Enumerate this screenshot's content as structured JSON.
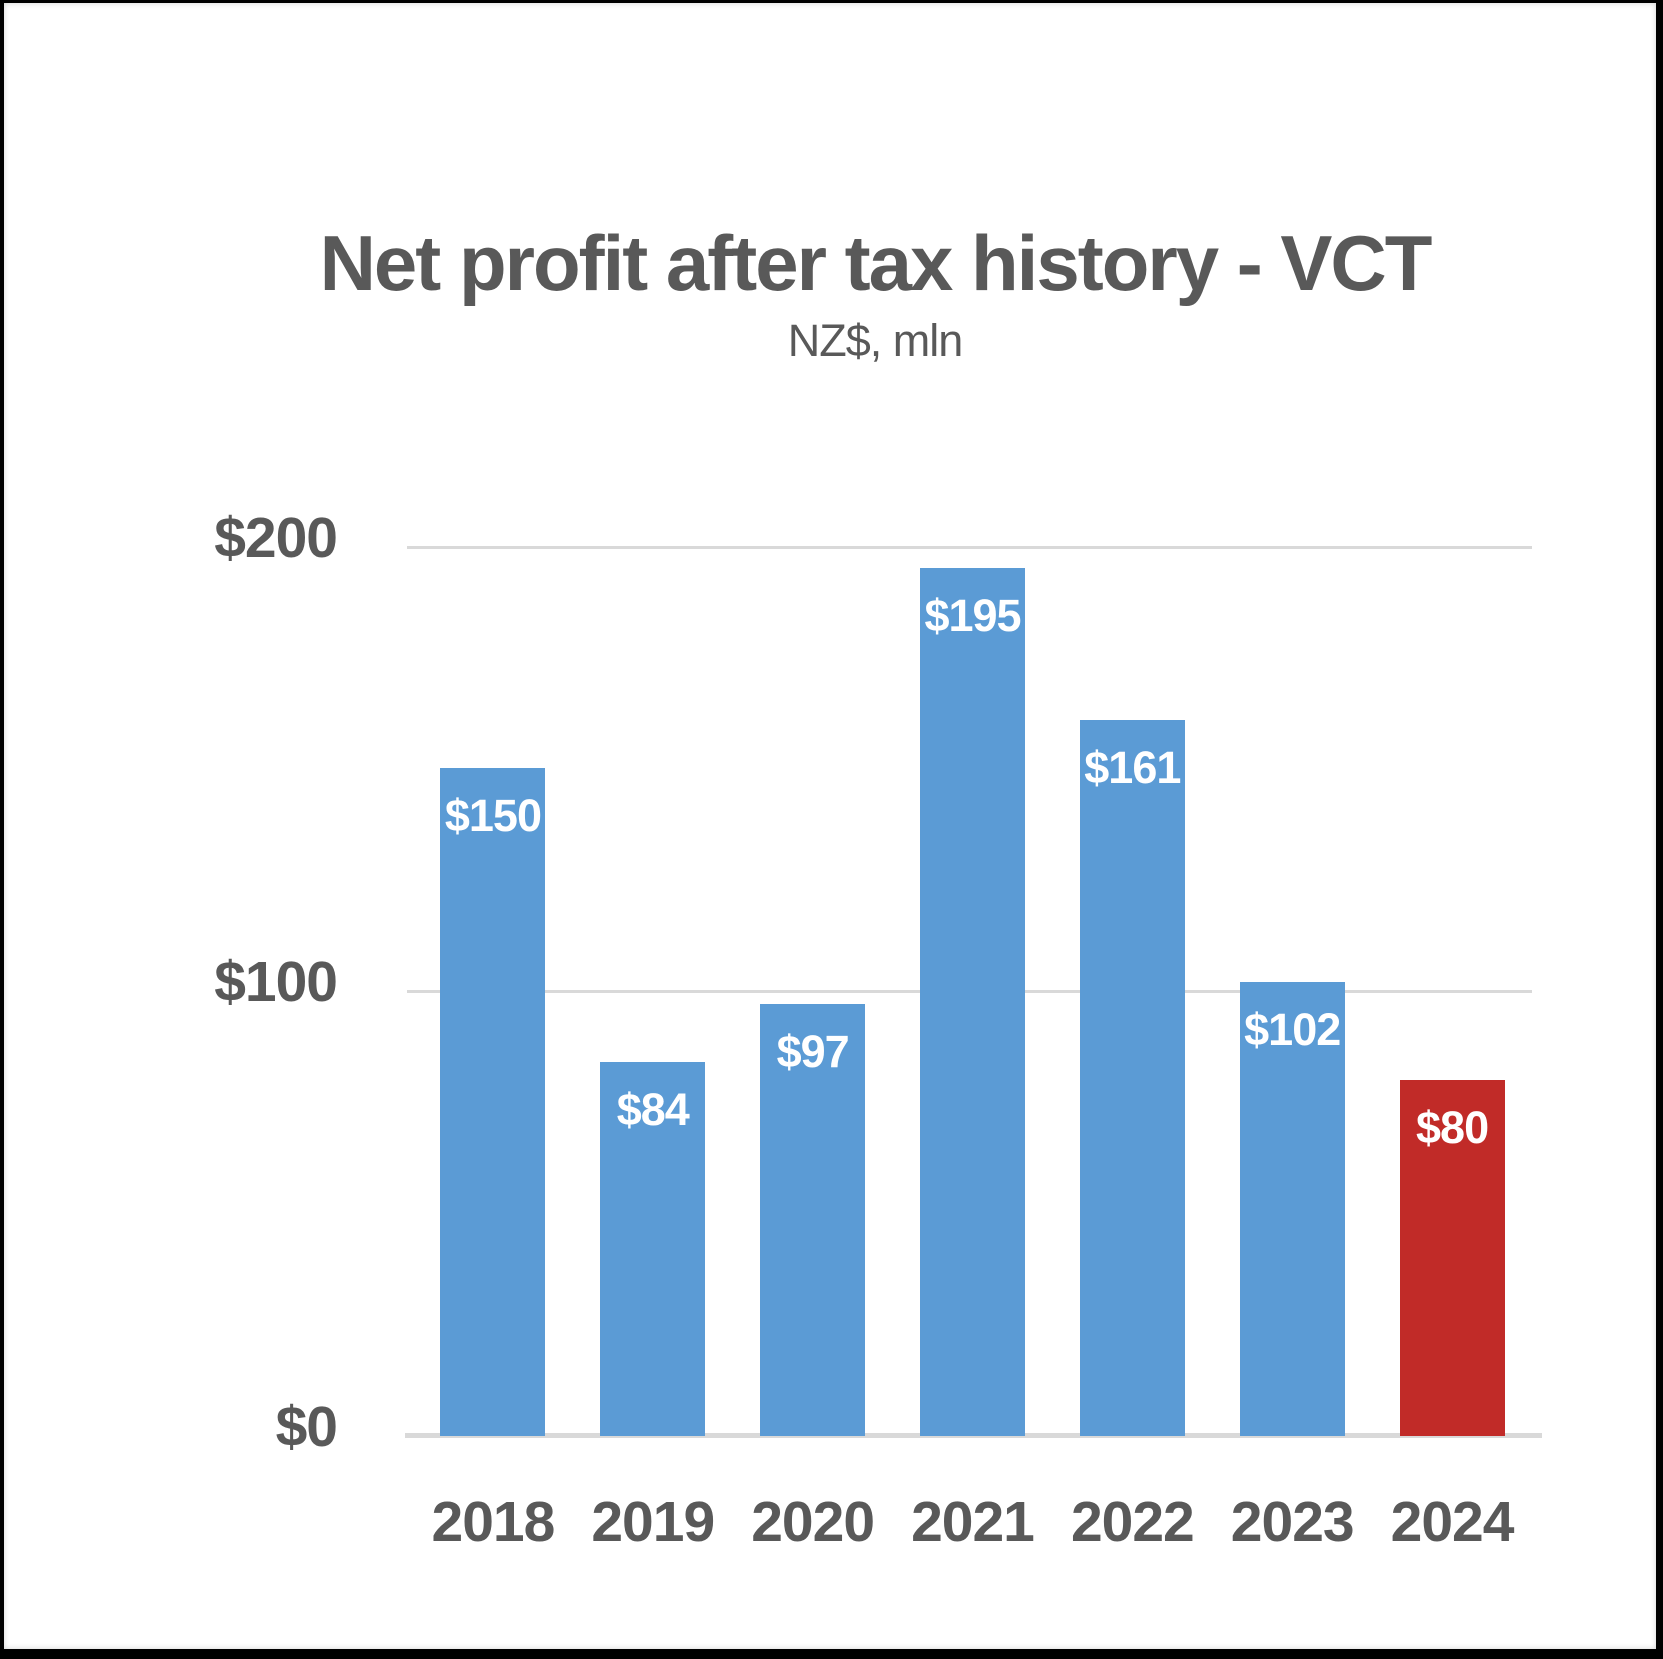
{
  "chart_data": {
    "type": "bar",
    "title": "Net profit after tax history - VCT",
    "subtitle": "NZ$, mln",
    "categories": [
      "2018",
      "2019",
      "2020",
      "2021",
      "2022",
      "2023",
      "2024"
    ],
    "values": [
      150,
      84,
      97,
      195,
      161,
      102,
      80
    ],
    "value_labels": [
      "$150",
      "$84",
      "$97",
      "$195",
      "$161",
      "$102",
      "$80"
    ],
    "series": [
      {
        "name": "Net profit after tax (NZ$ mln)",
        "values": [
          150,
          84,
          97,
          195,
          161,
          102,
          80
        ]
      }
    ],
    "yticks": [
      "$0",
      "$100",
      "$200"
    ],
    "ytick_values": [
      0,
      100,
      200
    ],
    "ylim": [
      0,
      200
    ],
    "grid": "horizontal gridlines at 100 and 200, light gray; baseline at 0",
    "legend": "none",
    "bar_colors": [
      "#5B9BD5",
      "#5B9BD5",
      "#5B9BD5",
      "#5B9BD5",
      "#5B9BD5",
      "#C12B28",
      " #C12B28"
    ],
    "colors": {
      "bar_default": "#5B9BD5",
      "bar_highlight": "#C12B28",
      "highlight_index": 6,
      "axis_text": "#595959",
      "title_text": "#595959",
      "data_label_text": "#FFFFFF",
      "gridline": "#D9D9D9",
      "frame_border": "#000000"
    }
  }
}
